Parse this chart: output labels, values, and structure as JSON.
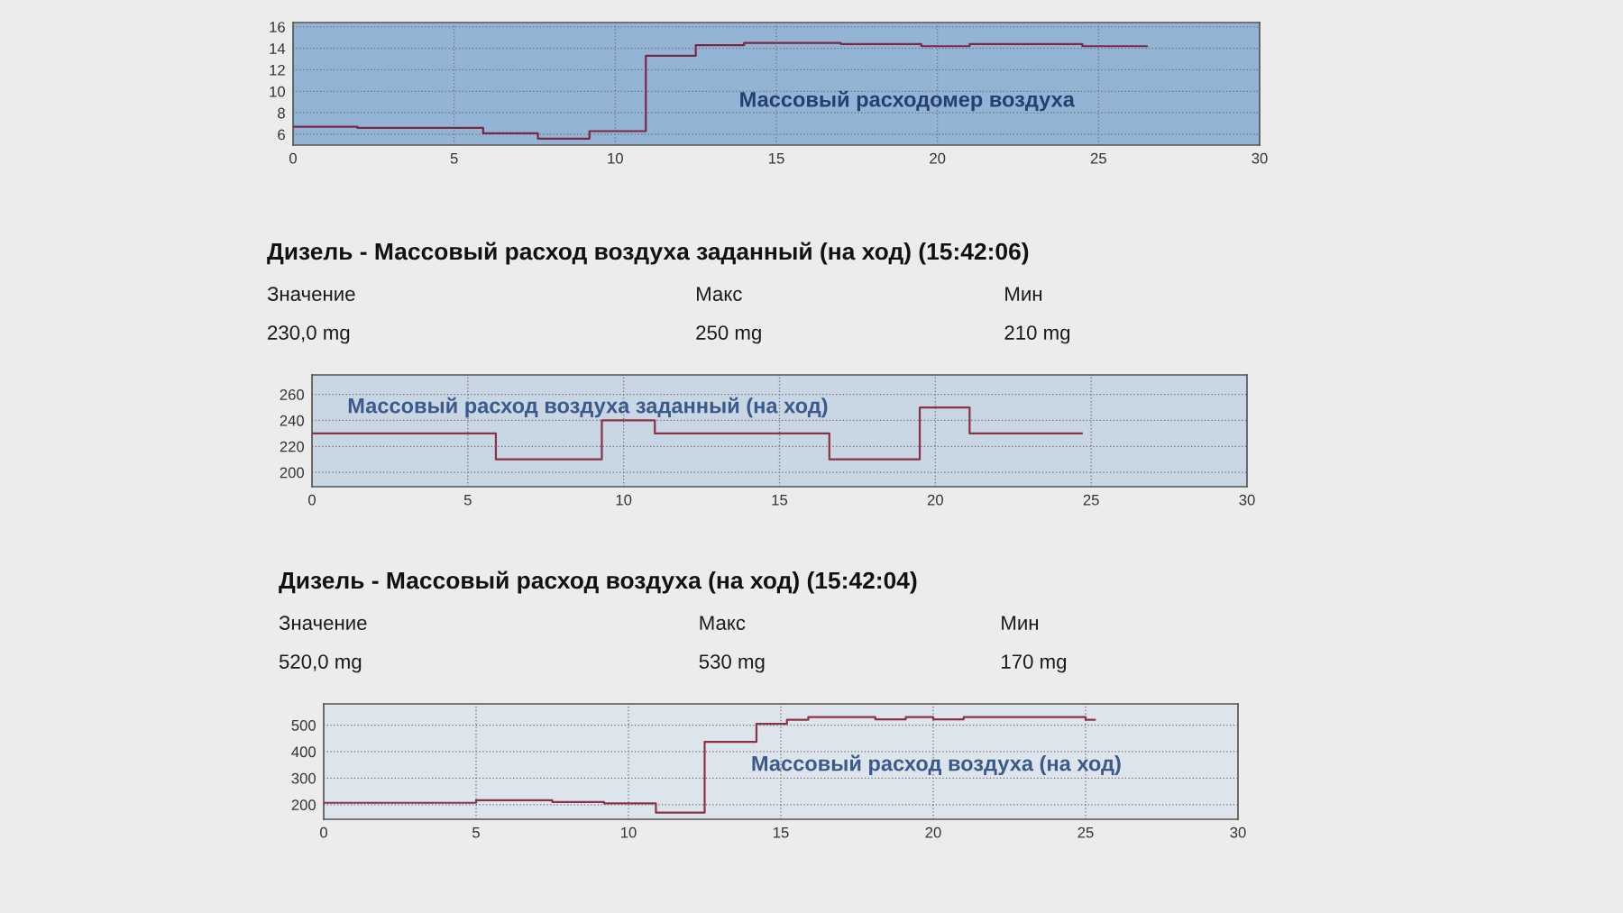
{
  "chart_data": [
    {
      "type": "step",
      "subtitle": "Массовый расходомер воздуха",
      "x": [
        0,
        2,
        4,
        5.9,
        7.6,
        9.2,
        10.95,
        12.5,
        14,
        17,
        19.5,
        21,
        24.5,
        26.5
      ],
      "series": [
        {
          "color": "#7a2848",
          "values": [
            6.7,
            6.6,
            6.6,
            6.1,
            5.6,
            6.3,
            13.3,
            14.3,
            14.5,
            14.4,
            14.2,
            14.4,
            14.2,
            14.2
          ]
        }
      ],
      "xlim": [
        0,
        30
      ],
      "xticks": [
        0,
        5,
        10,
        15,
        20,
        25,
        30
      ],
      "ylim": [
        5,
        16.4
      ],
      "yticks": [
        6,
        8,
        10,
        12,
        14,
        16
      ],
      "grid": true
    },
    {
      "type": "step",
      "title": "Дизель - Массовый расход воздуха заданный (на ход) (15:42:06)",
      "subtitle": "Массовый расход воздуха заданный (на ход)",
      "annotations": [
        "Значение",
        "230,0 mg",
        "Макс",
        "250 mg",
        "Мин",
        "210 mg"
      ],
      "x": [
        0,
        5.9,
        9.3,
        11.0,
        16.6,
        19.5,
        21.1,
        24.7
      ],
      "series": [
        {
          "color": "#8b3346",
          "values": [
            230,
            210,
            240,
            230,
            210,
            250,
            230,
            230
          ]
        }
      ],
      "xlim": [
        0,
        30
      ],
      "xticks": [
        0,
        5,
        10,
        15,
        20,
        25,
        30
      ],
      "ylim": [
        189,
        275
      ],
      "yticks": [
        200,
        220,
        240,
        260
      ],
      "grid": true
    },
    {
      "type": "step",
      "title": "Дизель - Массовый расход воздуха (на ход) (15:42:04)",
      "subtitle": "Массовый расход воздуха (на ход)",
      "annotations": [
        "Значение",
        "520,0 mg",
        "Макс",
        "530 mg",
        "Мин",
        "170 mg"
      ],
      "x": [
        0,
        5,
        7.5,
        9.2,
        10.9,
        12.5,
        14.2,
        15.2,
        15.9,
        18.1,
        19.1,
        20.0,
        21.0,
        25.0,
        25.3
      ],
      "series": [
        {
          "color": "#8b3346",
          "values": [
            207,
            217,
            210,
            205,
            170,
            437,
            505,
            520,
            530,
            522,
            530,
            522,
            530,
            520,
            520
          ]
        }
      ],
      "xlim": [
        0,
        30
      ],
      "xticks": [
        0,
        5,
        10,
        15,
        20,
        25,
        30
      ],
      "ylim": [
        145,
        580
      ],
      "yticks": [
        200,
        300,
        400,
        500
      ],
      "grid": true
    }
  ]
}
